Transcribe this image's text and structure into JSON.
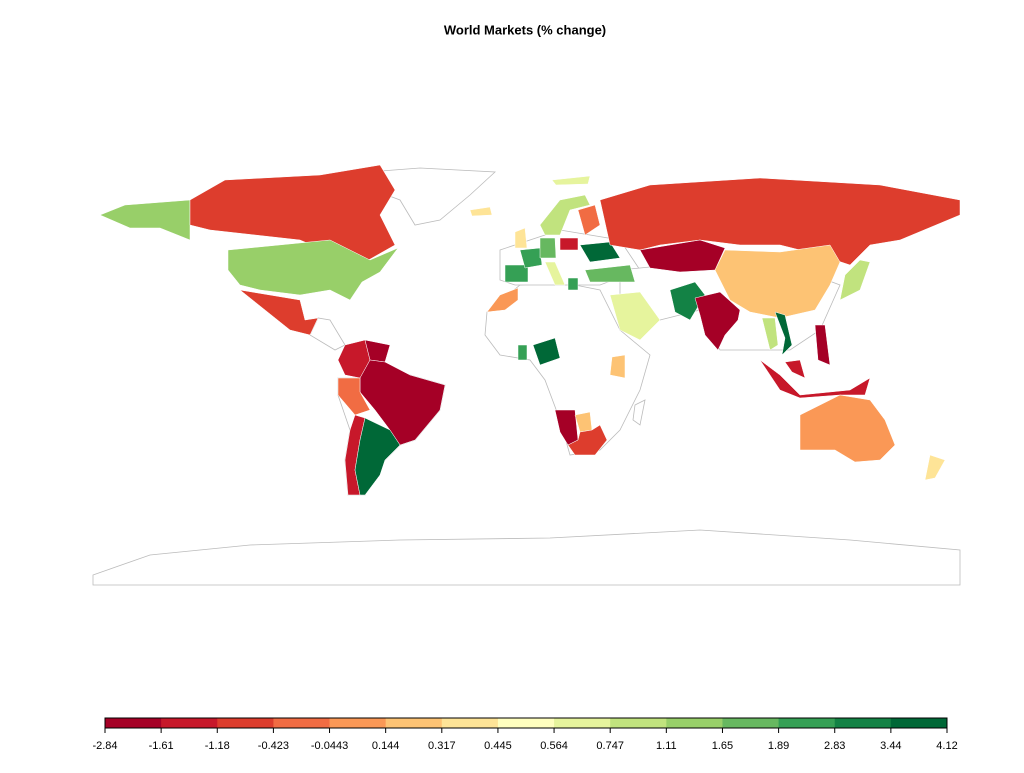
{
  "chart_data": {
    "type": "choropleth",
    "title": "World Markets (% change)",
    "legend_breaks": [
      -2.84,
      -1.61,
      -1.18,
      -0.423,
      -0.0443,
      0.144,
      0.317,
      0.445,
      0.564,
      0.747,
      1.11,
      1.65,
      1.89,
      2.83,
      3.44,
      4.12
    ],
    "legend_colors": [
      "#a50026",
      "#c7182a",
      "#dd3d2d",
      "#f16c43",
      "#fa9856",
      "#fdc374",
      "#fee497",
      "#ffffbf",
      "#e6f49d",
      "#c1e37e",
      "#98cf69",
      "#67b860",
      "#35a055",
      "#138245",
      "#006837"
    ]
  }
}
